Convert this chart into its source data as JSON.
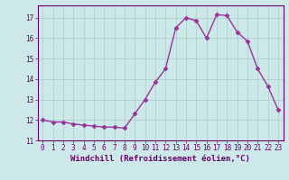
{
  "x": [
    0,
    1,
    2,
    3,
    4,
    5,
    6,
    7,
    8,
    9,
    10,
    11,
    12,
    13,
    14,
    15,
    16,
    17,
    18,
    19,
    20,
    21,
    22,
    23
  ],
  "y": [
    12.0,
    11.9,
    11.9,
    11.8,
    11.75,
    11.7,
    11.65,
    11.65,
    11.6,
    12.3,
    13.0,
    13.85,
    14.5,
    16.5,
    17.0,
    16.85,
    16.0,
    17.15,
    17.1,
    16.3,
    15.85,
    14.5,
    13.65,
    12.5
  ],
  "line_color": "#993399",
  "marker": "D",
  "markersize": 2.5,
  "linewidth": 1.0,
  "xlabel": "Windchill (Refroidissement éolien,°C)",
  "xlabel_fontsize": 6.5,
  "ylim": [
    11.0,
    17.6
  ],
  "xlim": [
    -0.5,
    23.5
  ],
  "yticks": [
    11,
    12,
    13,
    14,
    15,
    16,
    17
  ],
  "xticks": [
    0,
    1,
    2,
    3,
    4,
    5,
    6,
    7,
    8,
    9,
    10,
    11,
    12,
    13,
    14,
    15,
    16,
    17,
    18,
    19,
    20,
    21,
    22,
    23
  ],
  "xtick_labels": [
    "0",
    "1",
    "2",
    "3",
    "4",
    "5",
    "6",
    "7",
    "8",
    "9",
    "10",
    "11",
    "12",
    "13",
    "14",
    "15",
    "16",
    "17",
    "18",
    "19",
    "20",
    "21",
    "22",
    "23"
  ],
  "background_color": "#cce8e8",
  "grid_color": "#aacccc",
  "tick_color": "#660066",
  "tick_fontsize": 5.5,
  "spine_color": "#660066"
}
